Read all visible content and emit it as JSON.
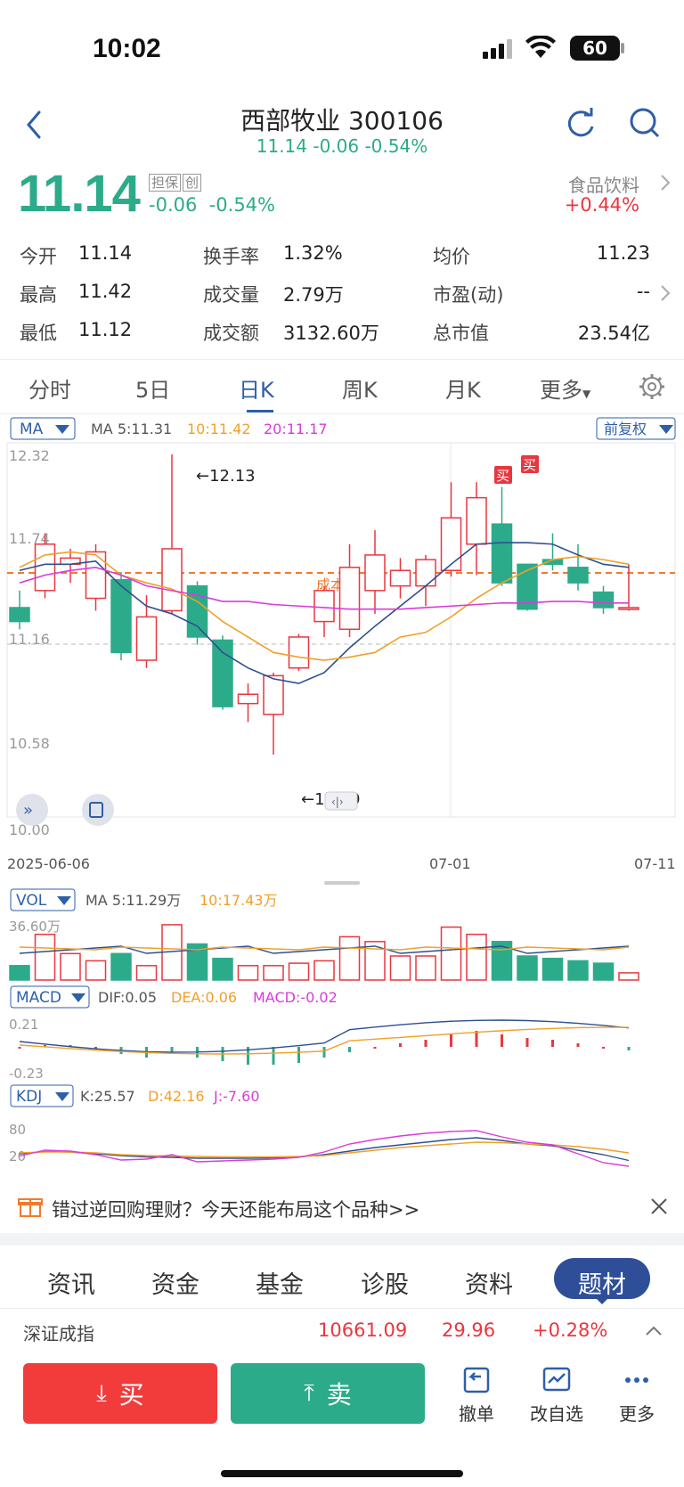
{
  "status_bar": {
    "time": "10:02",
    "battery": "60"
  },
  "header": {
    "title": "西部牧业 300106",
    "subtitle": "11.14  -0.06  -0.54%"
  },
  "quote": {
    "price": "11.14",
    "tags": [
      "担保",
      "创"
    ],
    "change": "-0.06",
    "change_pct": "-0.54%",
    "sector_name": "食品饮料",
    "sector_change": "+0.44%"
  },
  "stats": {
    "open_label": "今开",
    "open": "11.14",
    "high_label": "最高",
    "high": "11.42",
    "low_label": "最低",
    "low": "11.12",
    "turnover_label": "换手率",
    "turnover": "1.32%",
    "volume_label": "成交量",
    "volume": "2.79万",
    "amount_label": "成交额",
    "amount": "3132.60万",
    "avg_label": "均价",
    "avg": "11.23",
    "pe_label": "市盈(动)",
    "pe": "--",
    "mcap_label": "总市值",
    "mcap": "23.54亿"
  },
  "tabs": [
    "分时",
    "5日",
    "日K",
    "周K",
    "月K",
    "更多"
  ],
  "ma_bar": {
    "selector": "MA",
    "ma5": "MA 5:11.31",
    "ma10": "10:11.42",
    "ma20": "20:11.17",
    "adjust": "前复权"
  },
  "kline": {
    "y_labels": [
      "12.32",
      "11.74",
      "11.16",
      "10.58",
      "10.00"
    ],
    "cost_line_label": "成本线",
    "high_annotation": "←12.13",
    "low_annotation": "←10.19",
    "buy_mark": "买",
    "date_start": "2025-06-06",
    "date_mid": "07-01",
    "date_end": "07-11"
  },
  "vol_bar": {
    "selector": "VOL",
    "ma5": "MA 5:11.29万",
    "ma10": "10:17.43万",
    "max_label": "36.60万"
  },
  "macd_bar": {
    "selector": "MACD",
    "dif": "DIF:0.05",
    "dea": "DEA:0.06",
    "macd": "MACD:-0.02",
    "top": "0.21",
    "bottom": "-0.23"
  },
  "kdj_bar": {
    "selector": "KDJ",
    "k": "K:25.57",
    "d": "D:42.16",
    "j": "J:-7.60",
    "top": "80",
    "bottom": "20"
  },
  "banner": {
    "text": "错过逆回购理财？今天还能布局这个品种>>"
  },
  "news_tabs": [
    "资讯",
    "资金",
    "基金",
    "诊股",
    "资料",
    "题材"
  ],
  "index": {
    "name": "深证成指",
    "value": "10661.09",
    "change": "29.96",
    "pct": "+0.28%"
  },
  "actions": {
    "buy": "买",
    "sell": "卖",
    "cancel": "撤单",
    "edit": "改自选",
    "more": "更多"
  },
  "colors": {
    "up": "#e8373f",
    "down": "#2cab8a",
    "ma5": "#2f4f8f",
    "ma10": "#f0a028",
    "ma20": "#d93bd9",
    "accent": "#2e5fa8"
  }
}
